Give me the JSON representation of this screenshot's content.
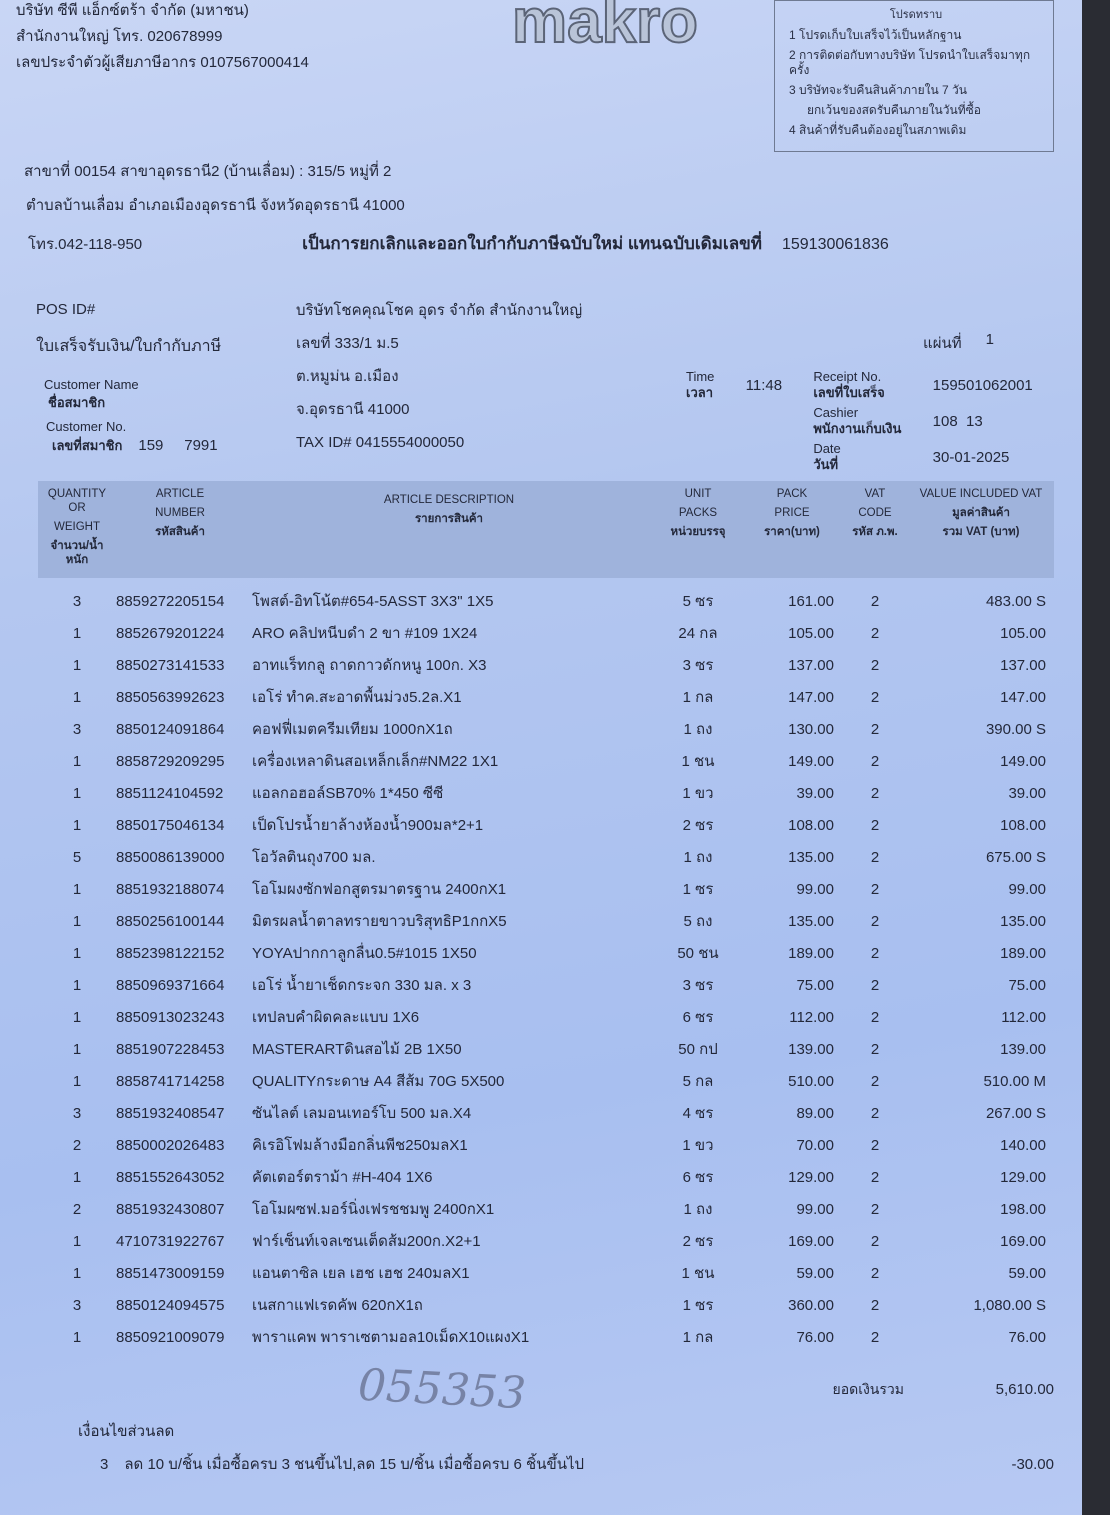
{
  "company": {
    "name": "บริษัท ซีพี แอ็กซ์ตร้า จำกัด (มหาชน)",
    "head_office": "สำนักงานใหญ่  โทร. 020678999",
    "tax_id": "เลขประจำตัวผู้เสียภาษีอากร 0107567000414",
    "logo": "makro"
  },
  "branch": {
    "line1": "สาขาที่ 00154 สาขาอุดรธานี2 (บ้านเลื่อม) : 315/5 หมู่ที่ 2",
    "line2": "ตำบลบ้านเลื่อม อำเภอเมืองอุดรธานี จังหวัดอุดรธานี 41000",
    "phone": "โทร.042-118-950"
  },
  "notice": {
    "title": "โปรดทราบ",
    "items": [
      "1  โปรดเก็บใบเสร็จไว้เป็นหลักฐาน",
      "2  การติดต่อกับทางบริษัท โปรดนำใบเสร็จมาทุกครั้ง",
      "3  บริษัทจะรับคืนสินค้าภายใน 7 วัน",
      "ยกเว้นของสดรับคืนภายในวันที่ซื้อ",
      "4  สินค้าที่รับคืนต้องอยู่ในสภาพเดิม"
    ]
  },
  "replacement_note": "เป็นการยกเลิกและออกใบกำกับภาษีฉบับใหม่ แทนฉบับเดิมเลขที่",
  "replacement_number": "159130061836",
  "customer": {
    "pos_label": "POS ID#",
    "doc_type": "ใบเสร็จรับเงิน/ใบกำกับภาษี",
    "name_label_en": "Customer Name",
    "name_label_th": "ชื่อสมาชิก",
    "no_label_en": "Customer No.",
    "no_label_th": "เลขที่สมาชิก",
    "no_value": "159     7991",
    "company": "บริษัทโชคคุณโชค อุดร จำกัด สำนักงานใหญ่",
    "addr1": "เลขที่ 333/1 ม.5",
    "addr2": "ต.หมูม่น อ.เมือง",
    "addr3": "จ.อุดรธานี 41000",
    "tax_id": "TAX ID# 0415554000050"
  },
  "meta": {
    "sheet_label": "แผ่นที่",
    "sheet_value": "1",
    "time_label_en": "Time",
    "time_label_th": "เวลา",
    "time_value": "11:48",
    "receipt_label_en": "Receipt No.",
    "receipt_label_th": "เลขที่ใบเสร็จ",
    "receipt_value": "159501062001",
    "cashier_label_en": "Cashier",
    "cashier_label_th": "พนักงานเก็บเงิน",
    "cashier_value": "108  13",
    "date_label_en": "Date",
    "date_label_th": "วันที่",
    "date_value": "30-01-2025"
  },
  "headers": {
    "qty": [
      "QUANTITY OR",
      "WEIGHT",
      "จำนวน/น้ำหนัก"
    ],
    "article": [
      "ARTICLE",
      "NUMBER",
      "รหัสสินค้า"
    ],
    "desc": [
      "ARTICLE DESCRIPTION",
      "รายการสินค้า"
    ],
    "unit": [
      "UNIT",
      "PACKS",
      "หน่วยบรรจุ"
    ],
    "price": [
      "PACK",
      "PRICE",
      "ราคา(บาท)"
    ],
    "vat": [
      "VAT",
      "CODE",
      "รหัส ภ.พ."
    ],
    "value": [
      "VALUE INCLUDED VAT",
      "มูลค่าสินค้า",
      "รวม VAT (บาท)"
    ]
  },
  "items": [
    {
      "qty": "3",
      "article": "8859272205154",
      "desc": "โพสต์-อิทโน้ต#654-5ASST 3X3\" 1X5",
      "unit": "5 ซร",
      "price": "161.00",
      "vat": "2",
      "value": "483.00 S"
    },
    {
      "qty": "1",
      "article": "8852679201224",
      "desc": "ARO คลิปหนีบดำ 2 ขา #109 1X24",
      "unit": "24 กล",
      "price": "105.00",
      "vat": "2",
      "value": "105.00"
    },
    {
      "qty": "1",
      "article": "8850273141533",
      "desc": "อาทแร็ทกลู ถาดกาวดักหนู 100ก. X3",
      "unit": "3 ซร",
      "price": "137.00",
      "vat": "2",
      "value": "137.00"
    },
    {
      "qty": "1",
      "article": "8850563992623",
      "desc": "เอโร่ ทำค.สะอาดพื้นม่วง5.2ล.X1",
      "unit": "1 กล",
      "price": "147.00",
      "vat": "2",
      "value": "147.00"
    },
    {
      "qty": "3",
      "article": "8850124091864",
      "desc": "คอฟฟี่เมตครีมเทียม 1000กX1ถ",
      "unit": "1 ถง",
      "price": "130.00",
      "vat": "2",
      "value": "390.00 S"
    },
    {
      "qty": "1",
      "article": "8858729209295",
      "desc": "เครื่องเหลาดินสอเหล็กเล็ก#NM22 1X1",
      "unit": "1 ชน",
      "price": "149.00",
      "vat": "2",
      "value": "149.00"
    },
    {
      "qty": "1",
      "article": "8851124104592",
      "desc": "แอลกอฮอล์SB70% 1*450 ซีซี",
      "unit": "1 ขว",
      "price": "39.00",
      "vat": "2",
      "value": "39.00"
    },
    {
      "qty": "1",
      "article": "8850175046134",
      "desc": "เป็ดโปรน้ำยาล้างห้องน้ำ900มล*2+1",
      "unit": "2 ซร",
      "price": "108.00",
      "vat": "2",
      "value": "108.00"
    },
    {
      "qty": "5",
      "article": "8850086139000",
      "desc": "โอวัลตินถุง700 มล.",
      "unit": "1 ถง",
      "price": "135.00",
      "vat": "2",
      "value": "675.00 S"
    },
    {
      "qty": "1",
      "article": "8851932188074",
      "desc": "โอโมผงซักฟอกสูตรมาตรฐาน 2400กX1",
      "unit": "1 ซร",
      "price": "99.00",
      "vat": "2",
      "value": "99.00"
    },
    {
      "qty": "1",
      "article": "8850256100144",
      "desc": "มิตรผลน้ำตาลทรายขาวบริสุทธิP1กกX5",
      "unit": "5 ถง",
      "price": "135.00",
      "vat": "2",
      "value": "135.00"
    },
    {
      "qty": "1",
      "article": "8852398122152",
      "desc": "YOYAปากกาลูกลื่น0.5#1015 1X50",
      "unit": "50 ชน",
      "price": "189.00",
      "vat": "2",
      "value": "189.00"
    },
    {
      "qty": "1",
      "article": "8850969371664",
      "desc": "เอโร่ น้ำยาเช็ดกระจก 330 มล. x 3",
      "unit": "3 ซร",
      "price": "75.00",
      "vat": "2",
      "value": "75.00"
    },
    {
      "qty": "1",
      "article": "8850913023243",
      "desc": "เทปลบคำผิดคละแบบ 1X6",
      "unit": "6 ซร",
      "price": "112.00",
      "vat": "2",
      "value": "112.00"
    },
    {
      "qty": "1",
      "article": "8851907228453",
      "desc": "MASTERARTดินสอไม้ 2B 1X50",
      "unit": "50 กป",
      "price": "139.00",
      "vat": "2",
      "value": "139.00"
    },
    {
      "qty": "1",
      "article": "8858741714258",
      "desc": "QUALITYกระดาษ A4 สีส้ม 70G 5X500",
      "unit": "5 กล",
      "price": "510.00",
      "vat": "2",
      "value": "510.00 M"
    },
    {
      "qty": "3",
      "article": "8851932408547",
      "desc": "ซันไลต์ เลมอนเทอร์โบ 500 มล.X4",
      "unit": "4 ซร",
      "price": "89.00",
      "vat": "2",
      "value": "267.00 S"
    },
    {
      "qty": "2",
      "article": "8850002026483",
      "desc": "คิเรอิโฟมล้างมือกลิ่นพีช250มลX1",
      "unit": "1 ขว",
      "price": "70.00",
      "vat": "2",
      "value": "140.00"
    },
    {
      "qty": "1",
      "article": "8851552643052",
      "desc": "คัตเตอร์ตราม้า #H-404 1X6",
      "unit": "6 ซร",
      "price": "129.00",
      "vat": "2",
      "value": "129.00"
    },
    {
      "qty": "2",
      "article": "8851932430807",
      "desc": "โอโมผซฟ.มอร์นิ่งเฟรชชมพู 2400กX1",
      "unit": "1 ถง",
      "price": "99.00",
      "vat": "2",
      "value": "198.00"
    },
    {
      "qty": "1",
      "article": "4710731922767",
      "desc": "ฟาร์เซ็นท์เจลเซนเต็ดส้ม200ก.X2+1",
      "unit": "2 ซร",
      "price": "169.00",
      "vat": "2",
      "value": "169.00"
    },
    {
      "qty": "1",
      "article": "8851473009159",
      "desc": "แอนตาซิล เยล เฮช เฮช 240มลX1",
      "unit": "1 ชน",
      "price": "59.00",
      "vat": "2",
      "value": "59.00"
    },
    {
      "qty": "3",
      "article": "8850124094575",
      "desc": "เนสกาแฟเรดคัพ 620กX1ถ",
      "unit": "1 ซร",
      "price": "360.00",
      "vat": "2",
      "value": "1,080.00 S"
    },
    {
      "qty": "1",
      "article": "8850921009079",
      "desc": "พาราแคพ พาราเซตามอล10เม็ดX10แผงX1",
      "unit": "1 กล",
      "price": "76.00",
      "vat": "2",
      "value": "76.00"
    }
  ],
  "totals": {
    "handwritten": "055353",
    "total_label": "ยอดเงินรวม",
    "total_value": "5,610.00",
    "discount_label": "เงื่อนไขส่วนลด",
    "discount_qty": "3",
    "discount_desc": "ลด 10 บ/ชิ้น เมื่อซื้อครบ 3 ชนขึ้นไป,ลด 15 บ/ชิ้น เมื่อซื้อครบ 6 ชิ้นขึ้นไป",
    "discount_value": "-30.00"
  }
}
